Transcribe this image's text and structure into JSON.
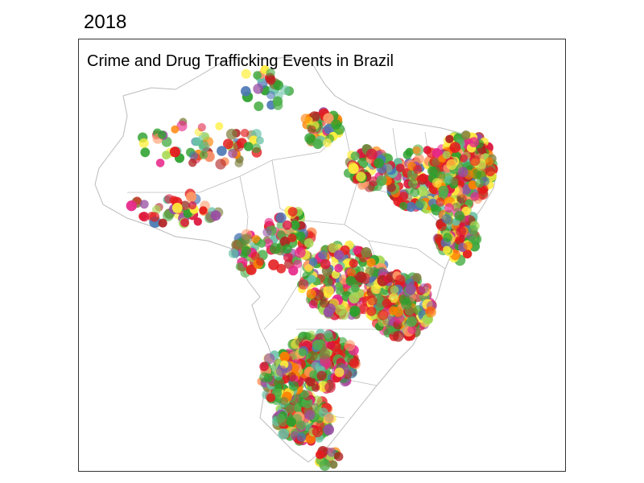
{
  "header": {
    "year": "2018"
  },
  "map": {
    "title": "Crime and Drug Trafficking Events in Brazil",
    "palette": [
      "#2ca02c",
      "#2ca02c",
      "#2ca02c",
      "#4daf4a",
      "#4daf4a",
      "#e41a1c",
      "#e41a1c",
      "#dc143c",
      "#ffeb3b",
      "#ffef3a",
      "#ff7f00",
      "#a6d854",
      "#b22222",
      "#984ea3",
      "#4a77b4",
      "#7f7f3f",
      "#ff9966",
      "#e7298a",
      "#66c2a5"
    ],
    "border_color": "#bbbbbb"
  }
}
